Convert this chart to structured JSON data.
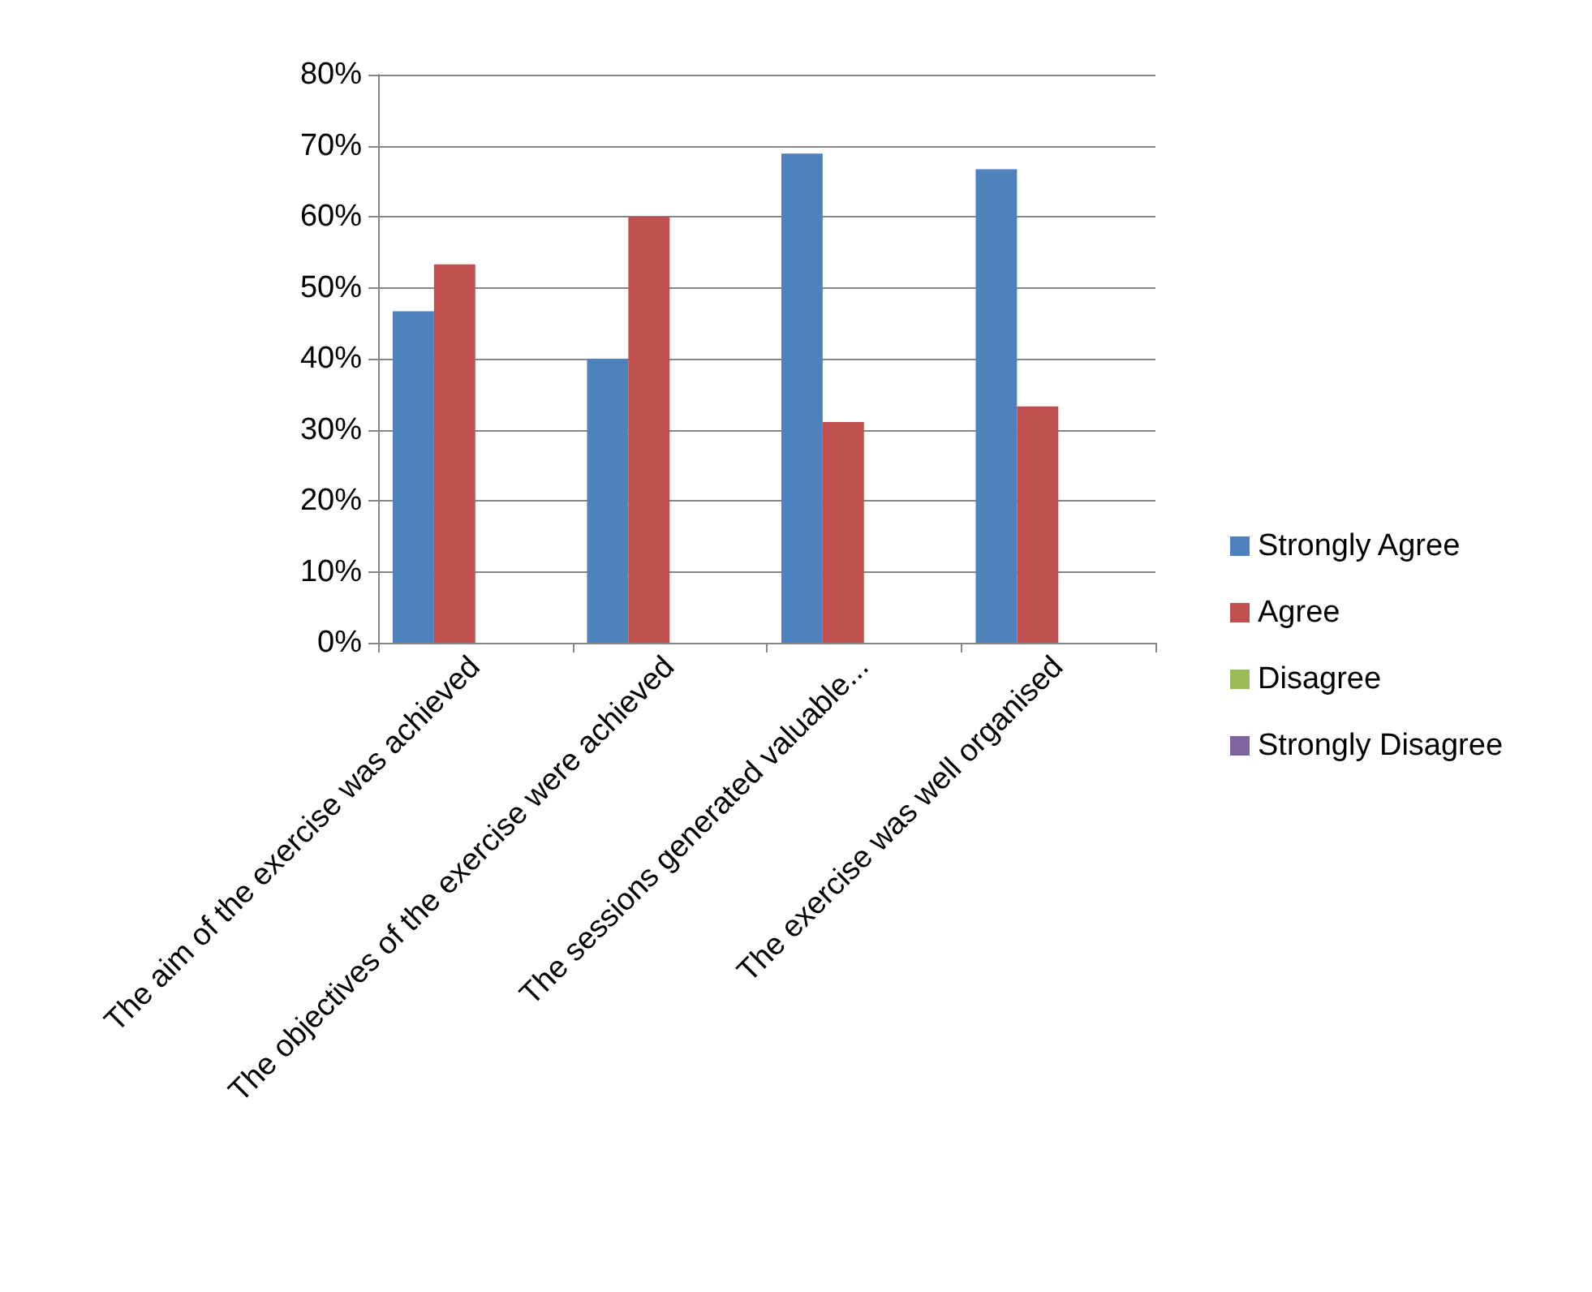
{
  "chart_data": {
    "type": "bar",
    "categories": [
      "The aim of the exercise was achieved",
      "The objectives of the exercise were achieved",
      "The sessions generated valuable...",
      "The exercise was well organised"
    ],
    "series": [
      {
        "name": "Strongly Agree",
        "color": "#4f81bd",
        "values": [
          46.7,
          40,
          68.9,
          66.7
        ]
      },
      {
        "name": "Agree",
        "color": "#c0504d",
        "values": [
          53.3,
          60,
          31.1,
          33.3
        ]
      },
      {
        "name": "Disagree",
        "color": "#9bbb59",
        "values": [
          0,
          0,
          0,
          0
        ]
      },
      {
        "name": "Strongly Disagree",
        "color": "#8064a2",
        "values": [
          0,
          0,
          0,
          0
        ]
      }
    ],
    "ylim": [
      0,
      80
    ],
    "yticks": [
      {
        "value": 0,
        "label": "0%"
      },
      {
        "value": 10,
        "label": "10%"
      },
      {
        "value": 20,
        "label": "20%"
      },
      {
        "value": 30,
        "label": "30%"
      },
      {
        "value": 40,
        "label": "40%"
      },
      {
        "value": 50,
        "label": "50%"
      },
      {
        "value": 60,
        "label": "60%"
      },
      {
        "value": 70,
        "label": "70%"
      },
      {
        "value": 80,
        "label": "80%"
      }
    ],
    "grid": "y",
    "legend": "right"
  }
}
